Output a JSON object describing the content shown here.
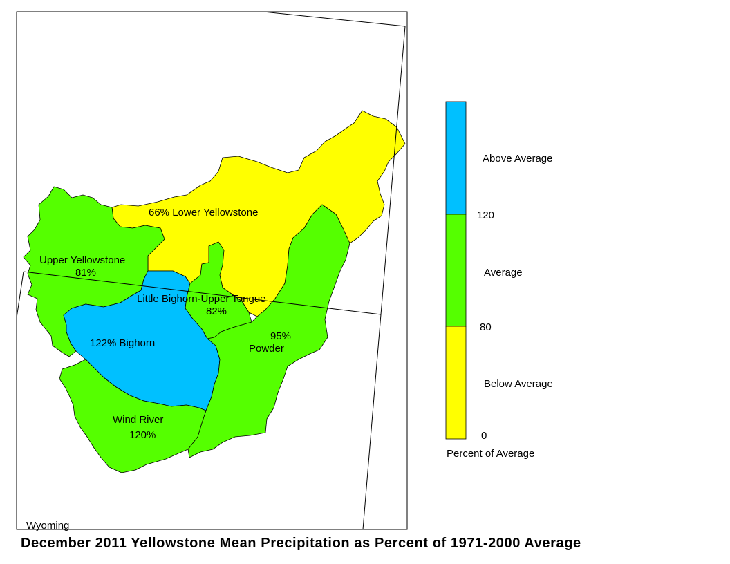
{
  "title": "December 2011 Yellowstone Mean Precipitation as Percent of 1971-2000 Average",
  "state_label": "Wyoming",
  "colors": {
    "above": "#00c0ff",
    "average": "#55ff00",
    "below": "#ffff00"
  },
  "basins": [
    {
      "name": "Lower Yellowstone",
      "label": "66% Lower Yellowstone",
      "percent": 66,
      "category": "below"
    },
    {
      "name": "Upper Yellowstone",
      "label": "Upper Yellowstone",
      "value_label": "81%",
      "percent": 81,
      "category": "average"
    },
    {
      "name": "Little Bighorn-Upper Tongue",
      "label": "Little Bighorn-Upper Tongue",
      "value_label": "82%",
      "percent": 82,
      "category": "average"
    },
    {
      "name": "Bighorn",
      "label": "122%  Bighorn",
      "percent": 122,
      "category": "above"
    },
    {
      "name": "Powder",
      "label": "Powder",
      "value_label": "95%",
      "percent": 95,
      "category": "average"
    },
    {
      "name": "Wind River",
      "label": "Wind River",
      "value_label": "120%",
      "percent": 120,
      "category": "average"
    }
  ],
  "legend": {
    "title": "Percent of Average",
    "categories": [
      {
        "label": "Above Average",
        "color": "#00c0ff"
      },
      {
        "label": "Average",
        "color": "#55ff00"
      },
      {
        "label": "Below Average",
        "color": "#ffff00"
      }
    ],
    "breaks": [
      "120",
      "80",
      "0"
    ]
  }
}
